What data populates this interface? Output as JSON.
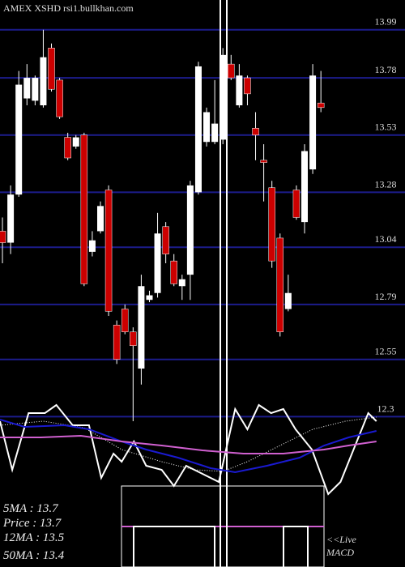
{
  "chart_data": [
    {
      "type": "candlestick",
      "title": "AMEX  XSHD rsi1.bullkhan.com",
      "xlim": [
        -0.3,
        49.3
      ],
      "ylim": [
        12.28,
        14.12
      ],
      "yticks": [
        13.99,
        13.78,
        13.53,
        13.28,
        13.04,
        12.79,
        12.55,
        12.3
      ],
      "grid": true,
      "grid_color": "#1c1c8c",
      "up_color": "#ffffff",
      "down_color": "#cc0000",
      "open": [
        13.11,
        13.06,
        13.27,
        13.69,
        13.68,
        13.66,
        13.91,
        13.77,
        13.52,
        13.48,
        13.53,
        13.02,
        13.11,
        13.29,
        12.7,
        12.77,
        12.67,
        12.51,
        12.81,
        12.84,
        13.13,
        12.98,
        12.87,
        12.92,
        13.28,
        13.5,
        13.5,
        13.51,
        13.84,
        13.66,
        13.78,
        13.56,
        13.42,
        13.3,
        13.08,
        12.77,
        13.29,
        13.15,
        13.38,
        13.67
      ],
      "high": [
        13.17,
        13.31,
        13.81,
        13.84,
        13.79,
        13.99,
        13.93,
        13.78,
        13.54,
        13.53,
        13.54,
        13.11,
        13.24,
        13.31,
        12.72,
        12.79,
        12.69,
        12.92,
        12.85,
        13.19,
        13.15,
        13.01,
        12.92,
        13.33,
        13.85,
        13.65,
        13.77,
        13.91,
        13.88,
        13.84,
        13.79,
        13.63,
        13.49,
        13.33,
        13.1,
        12.92,
        13.31,
        13.49,
        13.84,
        13.81
      ],
      "low": [
        12.97,
        13.01,
        13.26,
        13.66,
        13.66,
        13.65,
        13.72,
        13.6,
        13.42,
        13.47,
        12.87,
        13.0,
        13.1,
        12.74,
        12.53,
        12.66,
        12.28,
        12.44,
        12.8,
        12.82,
        12.97,
        12.87,
        12.81,
        12.81,
        13.27,
        13.48,
        13.49,
        13.49,
        13.77,
        13.65,
        13.66,
        13.42,
        13.24,
        12.95,
        12.65,
        12.76,
        13.16,
        13.1,
        13.36,
        13.63
      ],
      "close": [
        13.06,
        13.27,
        13.75,
        13.78,
        13.78,
        13.87,
        13.73,
        13.61,
        13.43,
        13.52,
        12.88,
        13.07,
        13.22,
        12.76,
        12.55,
        12.67,
        12.61,
        12.87,
        12.83,
        13.1,
        13.01,
        12.88,
        12.9,
        13.31,
        13.83,
        13.63,
        13.58,
        13.88,
        13.78,
        13.79,
        13.71,
        13.53,
        13.41,
        12.98,
        12.67,
        12.84,
        13.17,
        13.46,
        13.79,
        13.65
      ],
      "stats": [
        "5MA : 13.7",
        "Price  : 13.7",
        "12MA : 13.5",
        "50MA : 13.4"
      ]
    },
    {
      "type": "line",
      "xlim": [
        -0.3,
        49.3
      ],
      "ylim": [
        0,
        130
      ],
      "labels": [
        "<<Live",
        "MACD"
      ],
      "series": [
        {
          "color": "#ffffff",
          "style": "solid",
          "x": [
            -0.3,
            1.2,
            3.2,
            5.2,
            6.6,
            8.6,
            10.6,
            12.1,
            13.6,
            14.6,
            16.1,
            17.6,
            19.5,
            21,
            22.5,
            24.5,
            26.5,
            28.5,
            30,
            31.4,
            32.9,
            34.4,
            35.9,
            37.9,
            39.9,
            41.4,
            43.4,
            44.8,
            45.8
          ],
          "values": [
            100,
            40,
            110,
            110,
            120,
            95,
            95,
            30,
            60,
            50,
            75,
            45,
            40,
            20,
            45,
            35,
            25,
            115,
            90,
            120,
            110,
            115,
            90,
            65,
            10,
            25,
            75,
            110,
            100
          ]
        },
        {
          "color": "#ffffff",
          "style": "dotted",
          "x": [
            -0.3,
            5,
            10,
            14.6,
            19.5,
            23.5,
            27,
            30,
            34,
            38,
            42,
            45.8
          ],
          "values": [
            95,
            100,
            92,
            65,
            50,
            40,
            38,
            50,
            70,
            90,
            100,
            105
          ]
        },
        {
          "color": "#1a1ad0",
          "style": "solid",
          "x": [
            -0.3,
            2.7,
            7.6,
            10.6,
            14.6,
            17.6,
            21.5,
            25.5,
            28.5,
            32.4,
            36.4,
            39.4,
            42.4,
            45.8
          ],
          "values": [
            102,
            93,
            95,
            90,
            75,
            65,
            55,
            42,
            37,
            45,
            55,
            70,
            80,
            88
          ]
        },
        {
          "color": "#d060d0",
          "style": "solid",
          "x": [
            -0.3,
            4.7,
            9.6,
            14.6,
            19.5,
            24.5,
            29.5,
            34.4,
            39.4,
            42.4,
            45.8
          ],
          "values": [
            80,
            80,
            82,
            75,
            70,
            64,
            60,
            60,
            65,
            70,
            75
          ]
        }
      ]
    }
  ]
}
